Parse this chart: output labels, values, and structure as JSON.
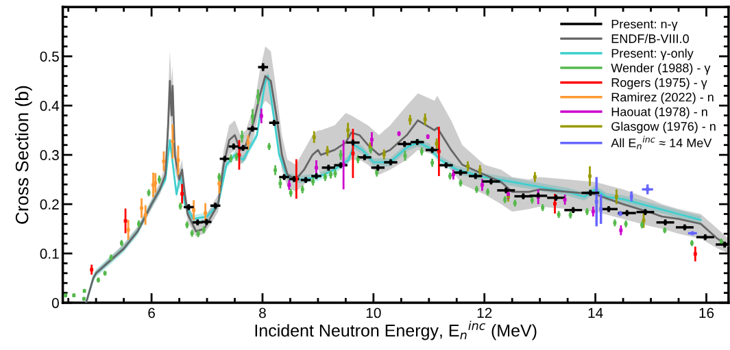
{
  "chart_data": {
    "type": "scatter",
    "xlabel": "Incident Neutron Energy, E$_{n}$$^{inc}$ (MeV)",
    "ylabel": "Cross Section (b)",
    "xlim": [
      4.4,
      16.4
    ],
    "xticks": [
      6,
      8,
      10,
      12,
      14,
      16
    ],
    "ylim": [
      0,
      0.6
    ],
    "yticks": [
      0,
      0.1,
      0.2,
      0.3,
      0.4,
      0.5
    ],
    "legend": "top right",
    "grid": false,
    "series": [
      {
        "name": "Present: n-γ",
        "color": "#000000",
        "x": [
          6.67,
          6.83,
          6.99,
          7.15,
          7.32,
          7.48,
          7.65,
          7.82,
          8.01,
          8.21,
          8.39,
          8.57,
          8.78,
          8.97,
          9.19,
          9.41,
          9.63,
          9.84,
          10.08,
          10.31,
          10.56,
          10.79,
          11.06,
          11.31,
          11.57,
          11.84,
          12.12,
          12.39,
          12.7,
          12.97,
          13.29,
          13.6,
          13.91,
          14.24,
          14.57,
          14.9,
          15.26,
          15.61,
          15.98,
          16.33
        ],
        "values": [
          0.194,
          0.163,
          0.164,
          0.197,
          0.292,
          0.317,
          0.314,
          0.353,
          0.478,
          0.365,
          0.255,
          0.251,
          0.249,
          0.257,
          0.274,
          0.279,
          0.325,
          0.295,
          0.274,
          0.285,
          0.322,
          0.326,
          0.31,
          0.279,
          0.264,
          0.257,
          0.246,
          0.228,
          0.216,
          0.217,
          0.213,
          0.188,
          0.223,
          0.19,
          0.182,
          0.184,
          0.163,
          0.153,
          0.133,
          0.118
        ],
        "errors": [
          0.006,
          0.006,
          0.006,
          0.006,
          0.006,
          0.006,
          0.006,
          0.006,
          0.008,
          0.006,
          0.006,
          0.006,
          0.006,
          0.006,
          0.006,
          0.006,
          0.006,
          0.006,
          0.006,
          0.006,
          0.006,
          0.006,
          0.006,
          0.006,
          0.006,
          0.006,
          0.006,
          0.006,
          0.006,
          0.006,
          0.006,
          0.006,
          0.006,
          0.006,
          0.006,
          0.006,
          0.006,
          0.006,
          0.006,
          0.006
        ],
        "xerrors": [
          0.09,
          0.09,
          0.09,
          0.09,
          0.09,
          0.09,
          0.09,
          0.09,
          0.09,
          0.09,
          0.09,
          0.09,
          0.09,
          0.09,
          0.12,
          0.12,
          0.12,
          0.12,
          0.12,
          0.12,
          0.12,
          0.12,
          0.12,
          0.12,
          0.12,
          0.12,
          0.16,
          0.16,
          0.16,
          0.16,
          0.16,
          0.16,
          0.16,
          0.16,
          0.16,
          0.16,
          0.16,
          0.16,
          0.16,
          0.16
        ]
      },
      {
        "type": "line",
        "name": "ENDF/B-VIII.0",
        "color": "#666666",
        "x": [
          4.82,
          4.95,
          5.0,
          5.5,
          5.75,
          6.0,
          6.15,
          6.25,
          6.3,
          6.33,
          6.36,
          6.38,
          6.42,
          6.5,
          6.55,
          6.6,
          6.65,
          6.8,
          6.95,
          7.1,
          7.2,
          7.3,
          7.4,
          7.5,
          7.6,
          7.7,
          7.85,
          7.95,
          8.05,
          8.15,
          8.25,
          8.35,
          8.45,
          8.6,
          8.75,
          8.9,
          9.0,
          9.05,
          9.3,
          9.5,
          9.6,
          9.75,
          9.9,
          10.1,
          10.3,
          10.6,
          10.8,
          11.1,
          11.15,
          11.4,
          11.6,
          12.0,
          12.3,
          12.5,
          12.8,
          13.0,
          13.5,
          14.0,
          14.5,
          15.0,
          15.2,
          15.5,
          15.9,
          16.2,
          16.4
        ],
        "values": [
          0,
          0.05,
          0.06,
          0.11,
          0.145,
          0.2,
          0.23,
          0.26,
          0.36,
          0.45,
          0.38,
          0.44,
          0.3,
          0.25,
          0.27,
          0.22,
          0.18,
          0.145,
          0.15,
          0.18,
          0.2,
          0.28,
          0.33,
          0.34,
          0.31,
          0.32,
          0.37,
          0.42,
          0.46,
          0.45,
          0.38,
          0.3,
          0.26,
          0.25,
          0.27,
          0.3,
          0.31,
          0.3,
          0.31,
          0.325,
          0.345,
          0.34,
          0.32,
          0.3,
          0.31,
          0.34,
          0.37,
          0.35,
          0.355,
          0.31,
          0.28,
          0.26,
          0.245,
          0.225,
          0.225,
          0.23,
          0.225,
          0.22,
          0.2,
          0.183,
          0.175,
          0.17,
          0.16,
          0.13,
          0.115
        ],
        "lower": [
          0,
          0.045,
          0.055,
          0.105,
          0.14,
          0.19,
          0.22,
          0.25,
          0.33,
          0.4,
          0.34,
          0.38,
          0.27,
          0.23,
          0.25,
          0.2,
          0.165,
          0.135,
          0.14,
          0.165,
          0.185,
          0.26,
          0.3,
          0.31,
          0.28,
          0.29,
          0.34,
          0.39,
          0.41,
          0.4,
          0.34,
          0.27,
          0.235,
          0.225,
          0.24,
          0.26,
          0.27,
          0.26,
          0.27,
          0.28,
          0.29,
          0.29,
          0.28,
          0.26,
          0.27,
          0.29,
          0.31,
          0.3,
          0.3,
          0.27,
          0.24,
          0.22,
          0.2,
          0.185,
          0.19,
          0.195,
          0.19,
          0.185,
          0.17,
          0.155,
          0.15,
          0.14,
          0.13,
          0.11,
          0.1
        ],
        "upper": [
          0,
          0.055,
          0.065,
          0.12,
          0.155,
          0.21,
          0.245,
          0.28,
          0.42,
          0.51,
          0.45,
          0.48,
          0.33,
          0.27,
          0.29,
          0.24,
          0.2,
          0.165,
          0.17,
          0.2,
          0.22,
          0.31,
          0.36,
          0.37,
          0.34,
          0.35,
          0.4,
          0.47,
          0.52,
          0.51,
          0.43,
          0.34,
          0.29,
          0.28,
          0.31,
          0.34,
          0.35,
          0.35,
          0.36,
          0.385,
          0.38,
          0.37,
          0.36,
          0.34,
          0.36,
          0.4,
          0.425,
          0.41,
          0.42,
          0.37,
          0.32,
          0.28,
          0.27,
          0.255,
          0.25,
          0.255,
          0.25,
          0.245,
          0.23,
          0.21,
          0.2,
          0.19,
          0.18,
          0.15,
          0.13
        ]
      },
      {
        "type": "line",
        "name": "Present: γ-only",
        "color": "#3fcfcf",
        "x": [
          4.82,
          4.95,
          5.0,
          5.5,
          5.75,
          6.0,
          6.15,
          6.25,
          6.33,
          6.45,
          6.52,
          6.6,
          6.75,
          7.0,
          7.2,
          7.35,
          7.5,
          7.65,
          7.75,
          7.9,
          8.05,
          8.1,
          8.2,
          8.3,
          8.45,
          8.7,
          9.0,
          9.3,
          9.55,
          9.65,
          9.8,
          10.0,
          10.3,
          10.6,
          10.8,
          11.0,
          11.2,
          11.5,
          12.0,
          12.5,
          13.0,
          13.5,
          13.8,
          14.0,
          14.2,
          14.5,
          15.0,
          15.5,
          15.9
        ],
        "values": [
          0,
          0.05,
          0.06,
          0.11,
          0.145,
          0.2,
          0.23,
          0.25,
          0.33,
          0.22,
          0.26,
          0.2,
          0.17,
          0.175,
          0.2,
          0.28,
          0.3,
          0.29,
          0.31,
          0.34,
          0.45,
          0.46,
          0.38,
          0.3,
          0.255,
          0.25,
          0.255,
          0.27,
          0.29,
          0.32,
          0.31,
          0.285,
          0.285,
          0.315,
          0.325,
          0.315,
          0.29,
          0.27,
          0.255,
          0.245,
          0.235,
          0.225,
          0.215,
          0.23,
          0.215,
          0.21,
          0.195,
          0.18,
          0.168
        ],
        "lower": [
          0,
          0.042,
          0.052,
          0.102,
          0.137,
          0.192,
          0.222,
          0.242,
          0.322,
          0.212,
          0.252,
          0.192,
          0.162,
          0.167,
          0.192,
          0.272,
          0.292,
          0.282,
          0.302,
          0.332,
          0.442,
          0.452,
          0.372,
          0.292,
          0.247,
          0.242,
          0.247,
          0.262,
          0.282,
          0.312,
          0.302,
          0.277,
          0.277,
          0.307,
          0.317,
          0.307,
          0.282,
          0.262,
          0.247,
          0.237,
          0.227,
          0.217,
          0.207,
          0.222,
          0.207,
          0.202,
          0.187,
          0.172,
          0.16
        ],
        "upper": [
          0,
          0.058,
          0.068,
          0.118,
          0.153,
          0.208,
          0.238,
          0.258,
          0.338,
          0.228,
          0.268,
          0.208,
          0.178,
          0.183,
          0.208,
          0.288,
          0.308,
          0.298,
          0.318,
          0.348,
          0.458,
          0.468,
          0.388,
          0.308,
          0.263,
          0.258,
          0.263,
          0.278,
          0.298,
          0.328,
          0.318,
          0.293,
          0.293,
          0.323,
          0.333,
          0.323,
          0.298,
          0.278,
          0.263,
          0.253,
          0.243,
          0.233,
          0.223,
          0.238,
          0.223,
          0.218,
          0.203,
          0.188,
          0.176
        ]
      },
      {
        "name": "Wender (1988) - γ",
        "color": "#55b94c",
        "x": [
          4.45,
          4.6,
          4.78,
          4.79,
          5.04,
          5.16,
          5.27,
          5.46,
          5.77,
          5.95,
          6.14,
          6.52,
          6.64,
          6.73,
          6.84,
          6.94,
          7.22,
          7.43,
          7.53,
          7.63,
          7.82,
          7.92,
          8.12,
          8.23,
          8.32,
          8.51,
          8.72,
          8.91,
          9.13,
          9.23,
          9.31,
          9.41,
          9.72,
          9.95,
          10.06,
          10.57,
          10.87,
          11.06,
          11.38,
          11.57,
          11.86,
          12.06,
          12.37,
          12.55,
          12.86,
          13.05,
          13.34,
          13.55,
          13.85,
          14.35,
          14.55,
          14.84,
          15.25,
          15.74,
          16.27
        ],
        "values": [
          0.015,
          0.015,
          0.008,
          0.024,
          0.046,
          0.06,
          0.092,
          0.121,
          0.16,
          0.223,
          0.25,
          0.196,
          0.158,
          0.141,
          0.14,
          0.148,
          0.255,
          0.293,
          0.296,
          0.337,
          0.378,
          0.418,
          0.317,
          0.269,
          0.242,
          0.223,
          0.23,
          0.246,
          0.255,
          0.26,
          0.262,
          0.3,
          0.291,
          0.311,
          0.264,
          0.298,
          0.307,
          0.284,
          0.257,
          0.243,
          0.23,
          0.225,
          0.209,
          0.202,
          0.208,
          0.193,
          0.179,
          0.178,
          0.185,
          0.162,
          0.16,
          0.158,
          0.147,
          0.121,
          0.124
        ],
        "errors": [
          0.004,
          0.004,
          0.004,
          0.004,
          0.005,
          0.005,
          0.006,
          0.006,
          0.007,
          0.007,
          0.008,
          0.007,
          0.007,
          0.007,
          0.007,
          0.007,
          0.008,
          0.008,
          0.008,
          0.012,
          0.015,
          0.015,
          0.007,
          0.01,
          0.01,
          0.008,
          0.008,
          0.008,
          0.008,
          0.008,
          0.008,
          0.01,
          0.008,
          0.008,
          0.008,
          0.01,
          0.008,
          0.008,
          0.007,
          0.007,
          0.007,
          0.007,
          0.007,
          0.007,
          0.007,
          0.007,
          0.007,
          0.007,
          0.007,
          0.007,
          0.007,
          0.007,
          0.006,
          0.006,
          0.006
        ]
      },
      {
        "name": "Rogers (1975) - γ",
        "color": "#ff0000",
        "x": [
          4.92,
          5.53,
          6.55,
          7.58,
          8.61,
          9.63,
          11.18,
          13.27,
          15.8
        ],
        "values": [
          0.067,
          0.166,
          0.221,
          0.3,
          0.251,
          0.303,
          0.307,
          0.201,
          0.099
        ],
        "errors": [
          0.01,
          0.025,
          0.02,
          0.03,
          0.04,
          0.05,
          0.05,
          0.02,
          0.015
        ]
      },
      {
        "name": "Ramirez (2022) - n",
        "color": "#ff9933",
        "x": [
          5.58,
          5.82,
          5.89,
          6.03,
          6.07,
          6.22,
          6.38,
          6.48,
          6.76,
          6.97,
          7.22,
          7.74
        ],
        "values": [
          0.148,
          0.192,
          0.178,
          0.239,
          0.243,
          0.287,
          0.327,
          0.289,
          0.188,
          0.182,
          0.242,
          0.325
        ],
        "errors": [
          0.02,
          0.02,
          0.02,
          0.025,
          0.02,
          0.02,
          0.035,
          0.03,
          0.02,
          0.02,
          0.02,
          0.015
        ]
      },
      {
        "name": "Haouat (1978) - n",
        "color": "#cc00cc",
        "x": [
          7.98,
          8.48,
          8.97,
          9.46,
          9.97,
          10.46,
          10.98,
          11.44,
          11.96,
          12.43,
          12.97,
          13.45,
          13.96,
          14.46
        ],
        "values": [
          0.379,
          0.239,
          0.274,
          0.28,
          0.331,
          0.343,
          0.337,
          0.26,
          0.239,
          0.22,
          0.215,
          0.209,
          0.185,
          0.147
        ],
        "errors": [
          0.015,
          0.01,
          0.015,
          0.05,
          0.015,
          0.005,
          0.005,
          0.01,
          0.012,
          0.01,
          0.015,
          0.01,
          0.01,
          0.01
        ]
      },
      {
        "name": "Glasgow (1976) - n",
        "color": "#999900",
        "x": [
          8.93,
          9.17,
          9.54,
          9.94,
          10.19,
          10.66,
          10.93,
          11.14,
          11.7,
          11.92,
          12.43,
          12.91,
          13.9,
          14.38,
          14.87
        ],
        "values": [
          0.336,
          0.308,
          0.35,
          0.316,
          0.301,
          0.371,
          0.372,
          0.323,
          0.277,
          0.269,
          0.215,
          0.255,
          0.257,
          0.215,
          0.167
        ],
        "errors": [
          0.012,
          0.01,
          0.015,
          0.01,
          0.01,
          0.01,
          0.012,
          0.01,
          0.01,
          0.01,
          0.01,
          0.01,
          0.02,
          0.015,
          0.015
        ]
      },
      {
        "name": "All E$_{n}$$^{inc}$ ≈ 14 MeV",
        "color": "#6666ff",
        "x": [
          14.02,
          14.1,
          14.45,
          14.65,
          14.94,
          15.75
        ],
        "values": [
          0.205,
          0.19,
          0.181,
          0.216,
          0.23,
          0.141
        ],
        "errors": [
          0.05,
          0.03,
          0.005,
          0.01,
          0.01,
          0.004
        ],
        "xerrors": [
          0.01,
          0.01,
          0.05,
          0.01,
          0.1,
          0.08
        ]
      }
    ]
  }
}
